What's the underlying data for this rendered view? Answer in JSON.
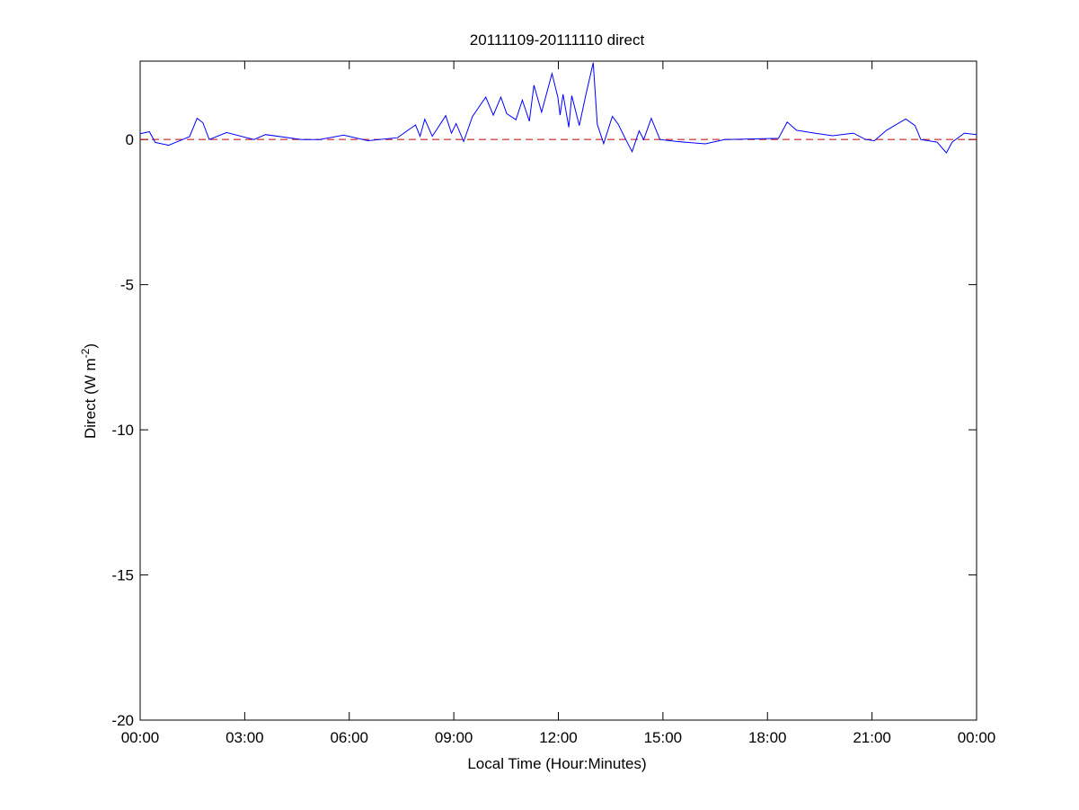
{
  "chart_data": {
    "type": "line",
    "title": "20111109-20111110 direct",
    "xlabel": "Local Time (Hour:Minutes)",
    "ylabel": "Direct (W m",
    "ylabel_sup": "-2",
    "ylabel_close": ")",
    "xlim": [
      "00:00",
      "24:00"
    ],
    "ylim": [
      -20,
      2.7
    ],
    "x_ticks": [
      "00:00",
      "03:00",
      "06:00",
      "09:00",
      "12:00",
      "15:00",
      "18:00",
      "21:00",
      "00:00"
    ],
    "y_ticks": [
      -20,
      -15,
      -10,
      -5,
      0
    ],
    "grid": false,
    "reference_line": {
      "y": 0,
      "style": "dashed",
      "color": "#c00000"
    },
    "series_color": "#0000ff",
    "series": [
      {
        "x": [
          "00:00",
          "00:16",
          "00:26",
          "00:49",
          "01:07",
          "01:25",
          "01:38",
          "01:48",
          "01:59",
          "02:29",
          "03:16",
          "03:36",
          "04:38",
          "05:09",
          "05:50",
          "06:32",
          "07:23",
          "07:54",
          "08:02",
          "08:10",
          "08:23",
          "08:46",
          "08:56",
          "09:04",
          "09:17",
          "09:32",
          "09:55",
          "10:08",
          "10:21",
          "10:31",
          "10:47",
          "10:58",
          "11:10",
          "11:18",
          "11:31",
          "11:49",
          "11:59",
          "12:03",
          "12:08",
          "12:18",
          "12:23",
          "12:36",
          "12:47",
          "13:00",
          "13:07",
          "13:18",
          "13:33",
          "13:43",
          "13:56",
          "14:07",
          "14:19",
          "14:27",
          "14:40",
          "14:55",
          "15:24",
          "16:13",
          "16:46",
          "18:19",
          "18:34",
          "18:50",
          "19:21",
          "19:52",
          "20:28",
          "20:49",
          "21:04",
          "21:25",
          "21:58",
          "22:14",
          "22:24",
          "22:52",
          "23:08",
          "23:18",
          "23:39",
          "24:00"
        ],
        "y": [
          0.2,
          0.27,
          -0.1,
          -0.2,
          -0.05,
          0.1,
          0.73,
          0.58,
          0.0,
          0.24,
          0.0,
          0.17,
          0.0,
          0.0,
          0.15,
          -0.04,
          0.06,
          0.5,
          0.11,
          0.7,
          0.11,
          0.82,
          0.22,
          0.55,
          -0.07,
          0.79,
          1.46,
          0.84,
          1.46,
          0.89,
          0.68,
          1.36,
          0.63,
          1.87,
          0.94,
          2.27,
          1.46,
          0.84,
          1.56,
          0.42,
          1.51,
          0.48,
          1.51,
          2.65,
          0.53,
          -0.14,
          0.8,
          0.53,
          0.0,
          -0.42,
          0.3,
          0.0,
          0.73,
          0.0,
          -0.07,
          -0.15,
          0.0,
          0.04,
          0.6,
          0.32,
          0.22,
          0.13,
          0.22,
          0.0,
          -0.04,
          0.32,
          0.71,
          0.48,
          0.0,
          -0.09,
          -0.46,
          -0.09,
          0.22,
          0.17
        ]
      }
    ]
  }
}
